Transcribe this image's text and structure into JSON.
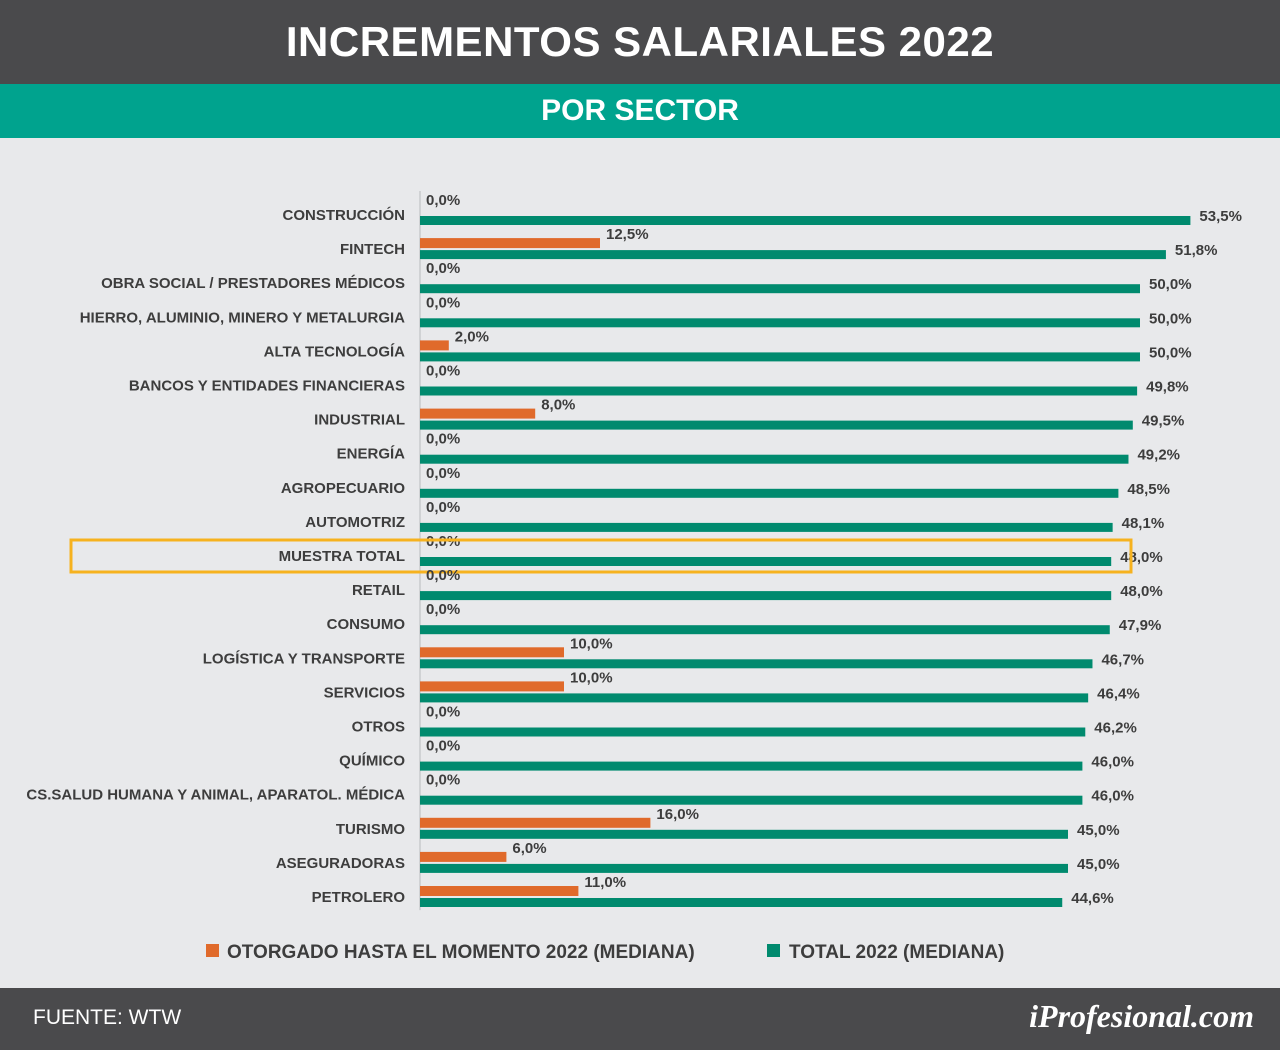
{
  "header": {
    "title": "INCREMENTOS SALARIALES 2022",
    "subtitle": "POR SECTOR"
  },
  "footer": {
    "source": "FUENTE: WTW",
    "brand": "iProfesional.com"
  },
  "colors": {
    "header_bg": "#4a4a4c",
    "subtitle_bg": "#00a38e",
    "otorgado": "#e06a2b",
    "total": "#008a6e",
    "highlight": "#f6b21f",
    "background": "#e8e9eb"
  },
  "chart_data": {
    "type": "bar",
    "orientation": "horizontal",
    "categories": [
      "CONSTRUCCIÓN",
      "FINTECH",
      "OBRA SOCIAL / PRESTADORES MÉDICOS",
      "HIERRO, ALUMINIO, MINERO Y METALURGIA",
      "ALTA TECNOLOGÍA",
      "BANCOS Y ENTIDADES FINANCIERAS",
      "INDUSTRIAL",
      "ENERGÍA",
      "AGROPECUARIO",
      "AUTOMOTRIZ",
      "MUESTRA TOTAL",
      "RETAIL",
      "CONSUMO",
      "LOGÍSTICA Y TRANSPORTE",
      "SERVICIOS",
      "OTROS",
      "QUÍMICO",
      "CS.SALUD HUMANA Y ANIMAL, APARATOL. MÉDICA",
      "TURISMO",
      "ASEGURADORAS",
      "PETROLERO"
    ],
    "series": [
      {
        "name": "OTORGADO HASTA EL MOMENTO 2022 (MEDIANA)",
        "values": [
          0.0,
          12.5,
          0.0,
          0.0,
          2.0,
          0.0,
          8.0,
          0.0,
          0.0,
          0.0,
          0.0,
          0.0,
          0.0,
          10.0,
          10.0,
          0.0,
          0.0,
          0.0,
          16.0,
          6.0,
          11.0
        ],
        "labels": [
          "0,0%",
          "12,5%",
          "0,0%",
          "0,0%",
          "2,0%",
          "0,0%",
          "8,0%",
          "0,0%",
          "0,0%",
          "0,0%",
          "0,0%",
          "0,0%",
          "0,0%",
          "10,0%",
          "10,0%",
          "0,0%",
          "0,0%",
          "0,0%",
          "16,0%",
          "6,0%",
          "11,0%"
        ],
        "color": "#e06a2b"
      },
      {
        "name": "TOTAL 2022 (MEDIANA)",
        "values": [
          53.5,
          51.8,
          50.0,
          50.0,
          50.0,
          49.8,
          49.5,
          49.2,
          48.5,
          48.1,
          48.0,
          48.0,
          47.9,
          46.7,
          46.4,
          46.2,
          46.0,
          46.0,
          45.0,
          45.0,
          44.6
        ],
        "labels": [
          "53,5%",
          "51,8%",
          "50,0%",
          "50,0%",
          "50,0%",
          "49,8%",
          "49,5%",
          "49,2%",
          "48,5%",
          "48,1%",
          "48,0%",
          "48,0%",
          "47,9%",
          "46,7%",
          "46,4%",
          "46,2%",
          "46,0%",
          "46,0%",
          "45,0%",
          "45,0%",
          "44,6%"
        ],
        "color": "#008a6e"
      }
    ],
    "highlighted_category": "MUESTRA TOTAL",
    "xlim": [
      0,
      53.5
    ],
    "grid": false,
    "legend_position": "bottom"
  }
}
